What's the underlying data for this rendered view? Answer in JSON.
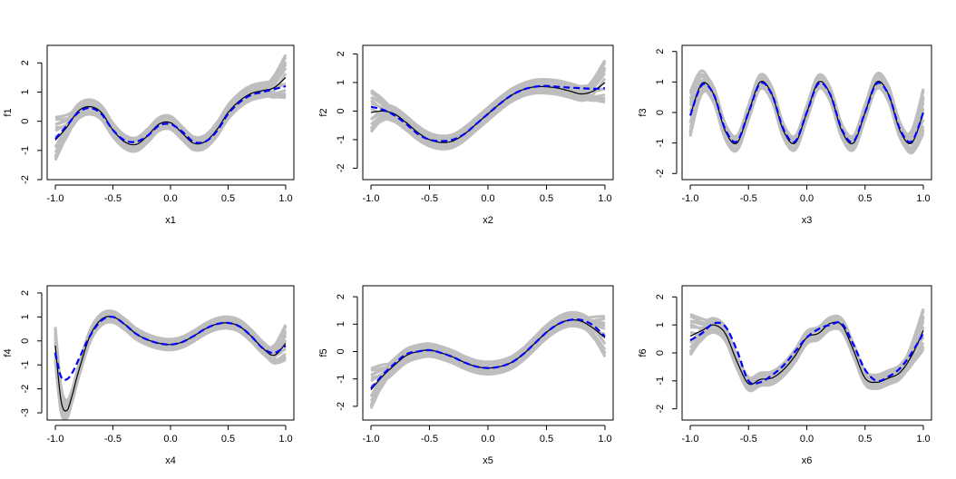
{
  "chart_data": [
    {
      "type": "line",
      "xlabel": "x1",
      "ylabel": "f1",
      "xlim": [
        -1.0,
        1.0
      ],
      "ylim": [
        -2,
        2.6
      ],
      "xticks": [
        "-1.0",
        "-0.5",
        "0.0",
        "0.5",
        "1.0"
      ],
      "yticks": [
        "-2",
        "-1",
        "0",
        "1",
        "2"
      ],
      "x": [
        -1.0,
        -0.9,
        -0.8,
        -0.7,
        -0.6,
        -0.5,
        -0.4,
        -0.3,
        -0.2,
        -0.1,
        0.0,
        0.1,
        0.2,
        0.3,
        0.4,
        0.5,
        0.6,
        0.7,
        0.8,
        0.9,
        1.0
      ],
      "series": [
        {
          "values": [
            -0.65,
            -0.2,
            0.35,
            0.5,
            0.3,
            -0.3,
            -0.7,
            -0.8,
            -0.5,
            -0.1,
            -0.05,
            -0.4,
            -0.75,
            -0.7,
            -0.3,
            0.3,
            0.7,
            0.95,
            1.05,
            1.15,
            1.5
          ]
        },
        {
          "values": [
            -0.6,
            -0.15,
            0.3,
            0.45,
            0.25,
            -0.3,
            -0.65,
            -0.7,
            -0.5,
            -0.15,
            -0.1,
            -0.35,
            -0.7,
            -0.7,
            -0.35,
            0.25,
            0.65,
            0.9,
            1.0,
            1.1,
            1.2
          ]
        }
      ]
    },
    {
      "type": "line",
      "xlabel": "x2",
      "ylabel": "f2",
      "xlim": [
        -1.0,
        1.0
      ],
      "ylim": [
        -2.4,
        2.3
      ],
      "xticks": [
        "-1.0",
        "-0.5",
        "0.0",
        "0.5",
        "1.0"
      ],
      "yticks": [
        "-2",
        "-1",
        "0",
        "1",
        "2"
      ],
      "x": [
        -1.0,
        -0.9,
        -0.8,
        -0.7,
        -0.6,
        -0.5,
        -0.4,
        -0.3,
        -0.2,
        -0.1,
        0.0,
        0.1,
        0.2,
        0.3,
        0.4,
        0.5,
        0.6,
        0.7,
        0.8,
        0.9,
        1.0
      ],
      "series": [
        {
          "values": [
            -0.05,
            0.0,
            -0.1,
            -0.4,
            -0.75,
            -1.0,
            -1.1,
            -1.05,
            -0.8,
            -0.45,
            -0.1,
            0.25,
            0.55,
            0.75,
            0.85,
            0.85,
            0.8,
            0.7,
            0.6,
            0.7,
            1.0
          ]
        },
        {
          "values": [
            0.15,
            0.05,
            -0.15,
            -0.45,
            -0.8,
            -1.0,
            -1.05,
            -1.0,
            -0.8,
            -0.45,
            -0.1,
            0.25,
            0.55,
            0.75,
            0.85,
            0.88,
            0.85,
            0.82,
            0.8,
            0.78,
            0.8
          ]
        }
      ]
    },
    {
      "type": "line",
      "xlabel": "x3",
      "ylabel": "f3",
      "xlim": [
        -1.0,
        1.0
      ],
      "ylim": [
        -2.2,
        2.2
      ],
      "xticks": [
        "-1.0",
        "-0.5",
        "0.0",
        "0.5",
        "1.0"
      ],
      "yticks": [
        "-2",
        "-1",
        "0",
        "1",
        "2"
      ],
      "x": [
        -1.0,
        -0.9,
        -0.8,
        -0.7,
        -0.6,
        -0.5,
        -0.4,
        -0.3,
        -0.2,
        -0.1,
        0.0,
        0.1,
        0.2,
        0.3,
        0.4,
        0.5,
        0.6,
        0.7,
        0.8,
        0.9,
        1.0
      ],
      "series": [
        {
          "values": [
            -0.1,
            0.95,
            0.6,
            -0.6,
            -1.0,
            0.0,
            1.0,
            0.6,
            -0.6,
            -1.0,
            0.0,
            1.0,
            0.6,
            -0.6,
            -1.0,
            0.0,
            1.0,
            0.6,
            -0.6,
            -1.0,
            0.0
          ]
        },
        {
          "values": [
            -0.1,
            0.9,
            0.6,
            -0.55,
            -0.95,
            0.0,
            0.95,
            0.6,
            -0.55,
            -0.95,
            0.0,
            0.95,
            0.6,
            -0.55,
            -0.95,
            0.0,
            0.95,
            0.6,
            -0.55,
            -0.95,
            0.0
          ]
        }
      ]
    },
    {
      "type": "line",
      "xlabel": "x4",
      "ylabel": "f4",
      "xlim": [
        -1.0,
        1.0
      ],
      "ylim": [
        -3.3,
        2.3
      ],
      "xticks": [
        "-1.0",
        "-0.5",
        "0.0",
        "0.5",
        "1.0"
      ],
      "yticks": [
        "-3",
        "-2",
        "-1",
        "0",
        "1",
        "2"
      ],
      "x": [
        -1.0,
        -0.95,
        -0.9,
        -0.85,
        -0.8,
        -0.7,
        -0.6,
        -0.5,
        -0.4,
        -0.3,
        -0.2,
        -0.1,
        0.0,
        0.1,
        0.2,
        0.3,
        0.4,
        0.5,
        0.6,
        0.7,
        0.8,
        0.9,
        1.0
      ],
      "series": [
        {
          "values": [
            -0.2,
            -2.5,
            -2.9,
            -2.2,
            -1.3,
            0.2,
            0.9,
            1.0,
            0.7,
            0.3,
            0.05,
            -0.1,
            -0.15,
            -0.05,
            0.2,
            0.5,
            0.7,
            0.75,
            0.6,
            0.2,
            -0.3,
            -0.6,
            -0.1
          ]
        },
        {
          "values": [
            -0.5,
            -1.5,
            -1.6,
            -1.3,
            -0.8,
            0.2,
            0.85,
            1.0,
            0.7,
            0.3,
            0.05,
            -0.1,
            -0.15,
            -0.05,
            0.2,
            0.5,
            0.7,
            0.75,
            0.6,
            0.2,
            -0.3,
            -0.5,
            -0.2
          ]
        }
      ]
    },
    {
      "type": "line",
      "xlabel": "x5",
      "ylabel": "f5",
      "xlim": [
        -1.0,
        1.0
      ],
      "ylim": [
        -2.5,
        2.4
      ],
      "xticks": [
        "-1.0",
        "-0.5",
        "0.0",
        "0.5",
        "1.0"
      ],
      "yticks": [
        "-2",
        "-1",
        "0",
        "1",
        "2"
      ],
      "x": [
        -1.0,
        -0.9,
        -0.8,
        -0.7,
        -0.6,
        -0.5,
        -0.4,
        -0.3,
        -0.2,
        -0.1,
        0.0,
        0.1,
        0.2,
        0.3,
        0.4,
        0.5,
        0.6,
        0.7,
        0.8,
        0.9,
        1.0
      ],
      "series": [
        {
          "values": [
            -1.4,
            -0.9,
            -0.5,
            -0.15,
            0.0,
            0.05,
            -0.05,
            -0.2,
            -0.4,
            -0.55,
            -0.6,
            -0.55,
            -0.4,
            -0.1,
            0.3,
            0.7,
            1.0,
            1.15,
            1.1,
            0.85,
            0.5
          ]
        },
        {
          "values": [
            -1.35,
            -0.85,
            -0.45,
            -0.1,
            0.0,
            0.05,
            -0.05,
            -0.2,
            -0.4,
            -0.55,
            -0.6,
            -0.55,
            -0.4,
            -0.1,
            0.3,
            0.7,
            1.0,
            1.15,
            1.15,
            0.95,
            0.55
          ]
        }
      ]
    },
    {
      "type": "line",
      "xlabel": "x6",
      "ylabel": "f6",
      "xlim": [
        -1.0,
        1.0
      ],
      "ylim": [
        -2.4,
        2.4
      ],
      "xticks": [
        "-1.0",
        "-0.5",
        "0.0",
        "0.5",
        "1.0"
      ],
      "yticks": [
        "-2",
        "-1",
        "0",
        "1",
        "2"
      ],
      "x": [
        -1.0,
        -0.9,
        -0.8,
        -0.7,
        -0.6,
        -0.5,
        -0.4,
        -0.3,
        -0.2,
        -0.1,
        0.0,
        0.1,
        0.2,
        0.3,
        0.4,
        0.5,
        0.6,
        0.7,
        0.8,
        0.9,
        1.0
      ],
      "series": [
        {
          "values": [
            0.6,
            0.8,
            1.0,
            0.7,
            -0.3,
            -1.1,
            -0.95,
            -0.9,
            -0.6,
            -0.1,
            0.55,
            0.7,
            1.05,
            1.0,
            0.1,
            -0.9,
            -1.05,
            -0.9,
            -0.7,
            -0.1,
            0.8
          ]
        },
        {
          "values": [
            0.45,
            0.7,
            1.05,
            0.95,
            0.1,
            -1.0,
            -1.05,
            -0.8,
            -0.45,
            0.05,
            0.55,
            0.85,
            1.0,
            1.05,
            0.3,
            -0.6,
            -1.0,
            -0.85,
            -0.55,
            0.0,
            0.7
          ]
        }
      ]
    }
  ],
  "colors": {
    "truth": "#000000",
    "estimate": "#0000ff",
    "replicates": "#bebebe"
  }
}
